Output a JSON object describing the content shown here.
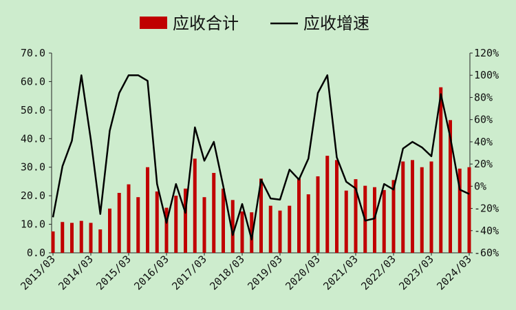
{
  "chart_data": {
    "type": "bar+line",
    "title": "",
    "legend": {
      "position": "top",
      "bar_label": "应收合计",
      "line_label": "应收增速"
    },
    "x_tick_labels": [
      "2013/03",
      "2014/03",
      "2015/03",
      "2016/03",
      "2017/03",
      "2018/03",
      "2019/03",
      "2020/03",
      "2021/03",
      "2022/03",
      "2023/03",
      "2024/03"
    ],
    "left_axis": {
      "ylim": [
        0,
        70
      ],
      "ticks": [
        "0.0",
        "10.0",
        "20.0",
        "30.0",
        "40.0",
        "50.0",
        "60.0",
        "70.0"
      ]
    },
    "right_axis": {
      "ylim": [
        -60,
        120
      ],
      "ticks": [
        "-60%",
        "-40%",
        "-20%",
        "0%",
        "20%",
        "40%",
        "60%",
        "80%",
        "100%",
        "120%"
      ]
    },
    "grid": false,
    "series": [
      {
        "name": "应收合计",
        "type": "bar",
        "color": "#c00000",
        "values": [
          7.5,
          10.8,
          10.5,
          11.2,
          10.5,
          8.2,
          15.5,
          21.0,
          24.0,
          19.5,
          30.0,
          21.5,
          15.8,
          20.0,
          22.5,
          33.0,
          19.5,
          28.0,
          22.5,
          18.5,
          14.5,
          14.2,
          26.0,
          16.5,
          14.8,
          16.5,
          26.0,
          20.5,
          26.8,
          34.0,
          32.5,
          21.8,
          25.8,
          23.5,
          23.0,
          22.0,
          25.5,
          32.0,
          32.5,
          30.0,
          32.0,
          58.0,
          46.5,
          29.5,
          30.0
        ]
      },
      {
        "name": "应收增速",
        "type": "line",
        "color": "#000000",
        "unit": "%",
        "values": [
          -28,
          18,
          41,
          100,
          42,
          -25,
          50,
          84,
          100,
          100,
          95,
          2,
          -33,
          2,
          -24,
          53,
          23,
          40,
          0,
          -44,
          -16,
          -48,
          6,
          -11,
          -12,
          15,
          6,
          25,
          84,
          100,
          26,
          4,
          -2,
          -31,
          -29,
          2,
          -3,
          34,
          40,
          35,
          27,
          83,
          44,
          -3,
          -7
        ]
      }
    ]
  }
}
